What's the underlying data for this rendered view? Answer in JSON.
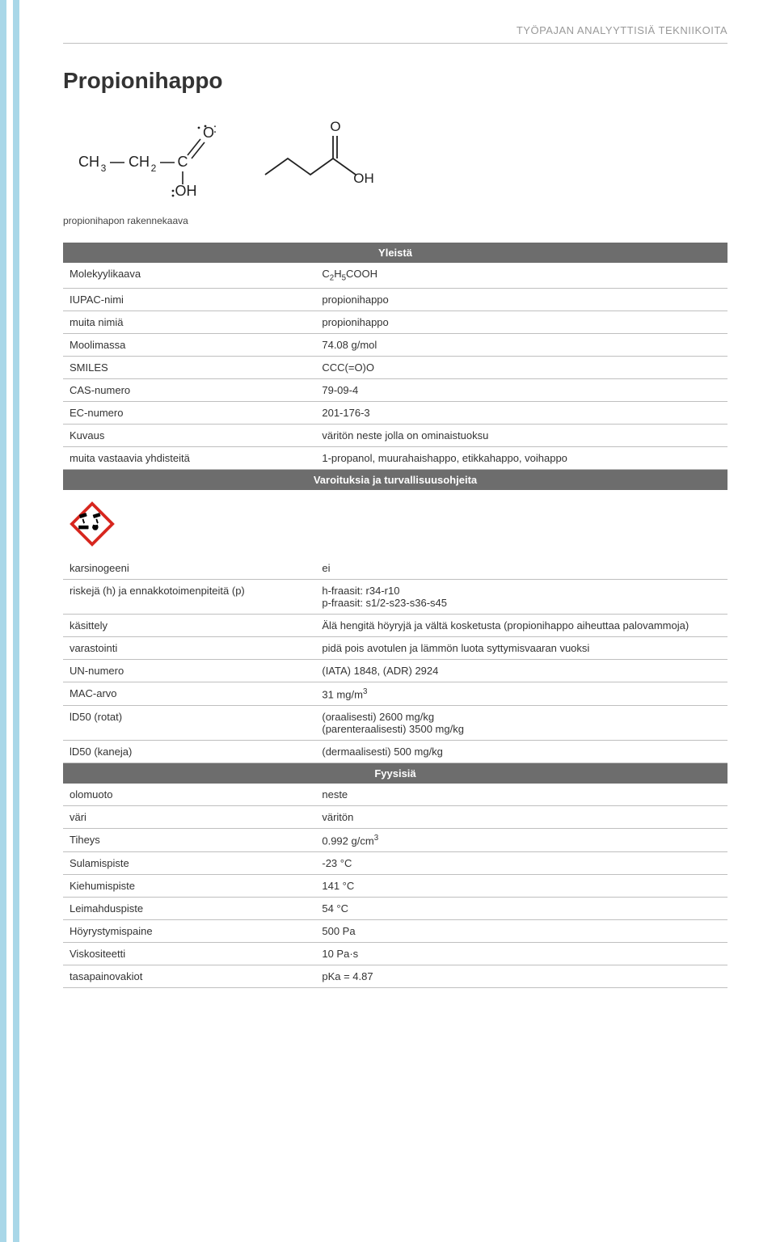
{
  "stripes": {
    "color1": "#a9d7e8",
    "color2": "#ffffff",
    "count": 2
  },
  "header": "TYÖPAJAN ANALYYTTISIÄ TEKNIIKOITA",
  "title": "Propionihappo",
  "caption": "propionihapon rakennekaava",
  "section_headers": {
    "general": "Yleistä",
    "safety": "Varoituksia ja turvallisuusohjeita",
    "physical": "Fyysisiä"
  },
  "general": [
    {
      "label": "Molekyylikaava",
      "value_html": "C<span class='sub'>2</span>H<span class='sub'>5</span>COOH"
    },
    {
      "label": "IUPAC-nimi",
      "value": "propionihappo"
    },
    {
      "label": "muita nimiä",
      "value": "propionihappo"
    },
    {
      "label": "Moolimassa",
      "value": "74.08 g/mol"
    },
    {
      "label": "SMILES",
      "value": "CCC(=O)O"
    },
    {
      "label": "CAS-numero",
      "value": "79-09-4"
    },
    {
      "label": "EC-numero",
      "value": "201-176-3"
    },
    {
      "label": "Kuvaus",
      "value": "väritön neste jolla on ominaistuoksu"
    },
    {
      "label": "muita vastaavia yhdisteitä",
      "value": "1-propanol, muurahaishappo, etikkahappo, voihappo"
    }
  ],
  "safety": [
    {
      "label": "karsinogeeni",
      "value": "ei"
    },
    {
      "label": "riskejä (h) ja ennakkotoimenpiteitä (p)",
      "value": "h-fraasit: r34-r10\np-fraasit: s1/2-s23-s36-s45"
    },
    {
      "label": "käsittely",
      "value": "Älä hengitä höyryjä ja vältä kosketusta (propionihappo aiheuttaa palovammoja)"
    },
    {
      "label": "varastointi",
      "value": "pidä pois avotulen ja lämmön luota syttymisvaaran vuoksi"
    },
    {
      "label": "UN-numero",
      "value": "(IATA) 1848,  (ADR) 2924"
    },
    {
      "label": "MAC-arvo",
      "value_html": "31 mg/m<span class='sup'>3</span>"
    },
    {
      "label": "lD50 (rotat)",
      "value": "(oraalisesti) 2600 mg/kg\n(parenteraalisesti) 3500 mg/kg"
    },
    {
      "label": "lD50 (kaneja)",
      "value": "(dermaalisesti) 500 mg/kg"
    }
  ],
  "physical": [
    {
      "label": "olomuoto",
      "value": "neste"
    },
    {
      "label": "väri",
      "value": "väritön"
    },
    {
      "label": "Tiheys",
      "value_html": "0.992 g/cm<span class='sup'>3</span>"
    },
    {
      "label": "Sulamispiste",
      "value": "-23 °C"
    },
    {
      "label": "Kiehumispiste",
      "value": "141 °C"
    },
    {
      "label": "Leimahduspiste",
      "value": "54 °C"
    },
    {
      "label": "Höyrystymispaine",
      "value": "500 Pa"
    },
    {
      "label": "Viskositeetti",
      "value": "10 Pa·s"
    },
    {
      "label": "tasapainovakiot",
      "value": "pKa = 4.87"
    }
  ],
  "colors": {
    "header_bg": "#6d6d6d",
    "border": "#bfbfbf",
    "hazard_red": "#d7261e"
  }
}
